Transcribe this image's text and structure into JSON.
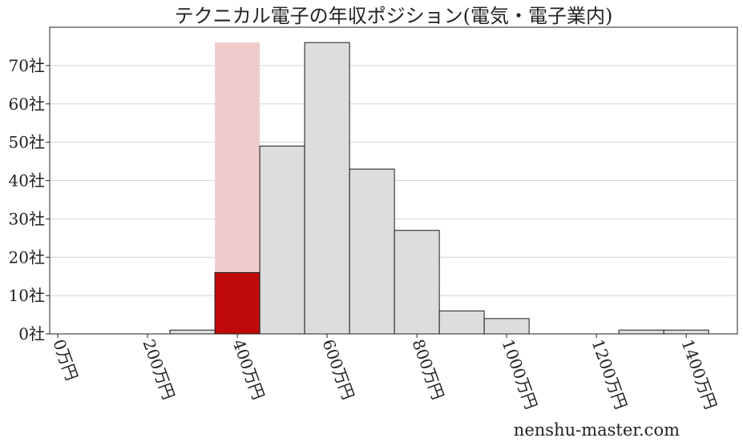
{
  "chart_data": {
    "type": "histogram",
    "title": "テクニカル電子の年収ポジション(電気・電子業内)",
    "bins": [
      250,
      350,
      450,
      550,
      650,
      750,
      850,
      950,
      1050,
      1150,
      1250,
      1350,
      1450
    ],
    "values": [
      1,
      16,
      49,
      76,
      43,
      27,
      6,
      4,
      0,
      0,
      1,
      1
    ],
    "color": "#dcdddf",
    "edge_color": "#1a1a1a",
    "highlight": {
      "bin": 1,
      "color": "#c00a0a",
      "band_color": "#f0cbcb"
    },
    "xlim": [
      -18,
      1514
    ],
    "xticks": [
      {
        "value": 0,
        "label": "0万円"
      },
      {
        "value": 200,
        "label": "200万円"
      },
      {
        "value": 400,
        "label": "400万円"
      },
      {
        "value": 600,
        "label": "600万円"
      },
      {
        "value": 800,
        "label": "800万円"
      },
      {
        "value": 1000,
        "label": "1000万円"
      },
      {
        "value": 1200,
        "label": "1200万円"
      },
      {
        "value": 1400,
        "label": "1400万円"
      }
    ],
    "ylim": [
      0,
      80
    ],
    "yticks": [
      {
        "value": 0,
        "label": "0社"
      },
      {
        "value": 10,
        "label": "10社"
      },
      {
        "value": 20,
        "label": "20社"
      },
      {
        "value": 30,
        "label": "30社"
      },
      {
        "value": 40,
        "label": "40社"
      },
      {
        "value": 50,
        "label": "50社"
      },
      {
        "value": 60,
        "label": "60社"
      },
      {
        "value": 70,
        "label": "70社"
      }
    ],
    "grid": true,
    "watermark": "nenshu-master.com"
  }
}
